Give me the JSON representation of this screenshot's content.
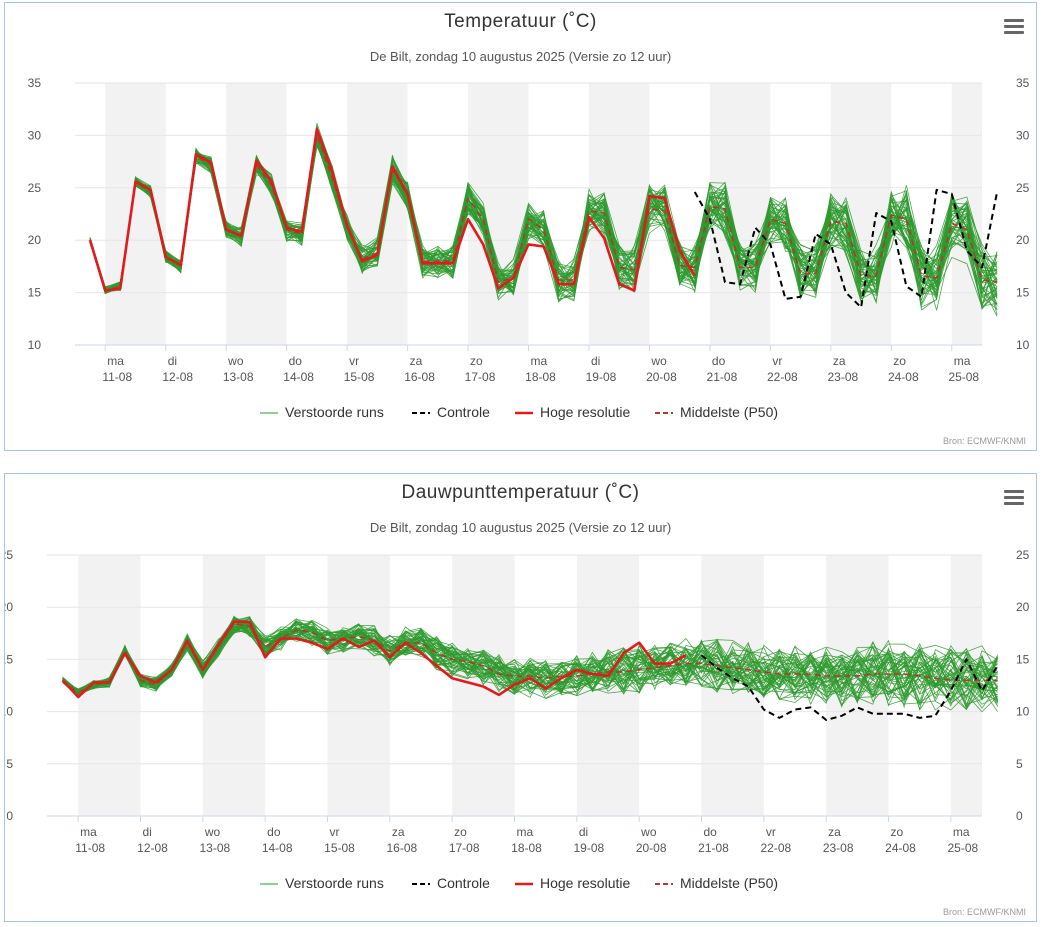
{
  "credit": "Bron: ECMWF/KNMI",
  "legend": [
    {
      "label": "Verstoorde runs",
      "color": "#2e9a2e",
      "style": "solid"
    },
    {
      "label": "Controle",
      "color": "#000000",
      "style": "dashed"
    },
    {
      "label": "Hoge resolutie",
      "color": "#e31a1c",
      "style": "solid"
    },
    {
      "label": "Middelste (P50)",
      "color": "#b03a2e",
      "style": "dashed"
    }
  ],
  "colors": {
    "ensemble": "#2e9a2e",
    "control": "#000000",
    "hires": "#e31a1c",
    "median": "#b03a2e",
    "band": "#f2f2f2",
    "grid": "#e6e6e6"
  },
  "chart_data": [
    {
      "type": "line",
      "title": "Temperatuur (˚C)",
      "subtitle": "De Bilt, zondag 10 augustus 2025 (Versie zo 12 uur)",
      "ylim": [
        10,
        35
      ],
      "yticks": [
        10,
        15,
        20,
        25,
        30,
        35
      ],
      "x_range": [
        "2025-08-10 12:00",
        "2025-08-25 12:00"
      ],
      "x_step_hours": 6,
      "x_start": "2025-08-10 18:00",
      "days": [
        {
          "day": "ma",
          "date": "11-08"
        },
        {
          "day": "di",
          "date": "12-08"
        },
        {
          "day": "wo",
          "date": "13-08"
        },
        {
          "day": "do",
          "date": "14-08"
        },
        {
          "day": "vr",
          "date": "15-08"
        },
        {
          "day": "za",
          "date": "16-08"
        },
        {
          "day": "zo",
          "date": "17-08"
        },
        {
          "day": "ma",
          "date": "18-08"
        },
        {
          "day": "di",
          "date": "19-08"
        },
        {
          "day": "wo",
          "date": "20-08"
        },
        {
          "day": "do",
          "date": "21-08"
        },
        {
          "day": "vr",
          "date": "22-08"
        },
        {
          "day": "za",
          "date": "23-08"
        },
        {
          "day": "zo",
          "date": "24-08"
        },
        {
          "day": "ma",
          "date": "25-08"
        }
      ],
      "series": [
        {
          "name": "Middelste (P50)",
          "style": "median",
          "values": [
            20,
            15.2,
            15.6,
            25.6,
            24.6,
            18.4,
            17.6,
            28,
            27.2,
            21,
            20.4,
            27.2,
            25.2,
            21,
            20.6,
            30,
            26,
            21.2,
            18.2,
            18.8,
            26.8,
            24.2,
            18,
            18,
            18,
            24,
            22,
            16,
            16.4,
            22,
            21,
            16.2,
            16.2,
            22.8,
            22.6,
            17.4,
            17.2,
            23,
            22.8,
            17.6,
            17.4,
            23.2,
            23,
            17.4,
            17.4,
            22,
            21.6,
            16.8,
            16.8,
            21.8,
            21.6,
            16.6,
            16.6,
            22.4,
            22,
            16.6,
            16.4,
            21.6,
            21,
            16.2,
            16
          ]
        },
        {
          "name": "Controle",
          "style": "control",
          "values": [
            null,
            null,
            null,
            null,
            null,
            null,
            null,
            null,
            null,
            null,
            null,
            null,
            null,
            null,
            null,
            null,
            null,
            null,
            null,
            null,
            null,
            null,
            null,
            null,
            null,
            null,
            null,
            null,
            null,
            null,
            null,
            null,
            null,
            null,
            null,
            null,
            null,
            null,
            null,
            null,
            24.6,
            22,
            16,
            15.8,
            21.2,
            19.6,
            14.4,
            14.6,
            20.6,
            19.6,
            15,
            13.6,
            22.6,
            21.8,
            15.6,
            14.6,
            24.8,
            24.4,
            19,
            17.4,
            24.6
          ]
        },
        {
          "name": "Hoge resolutie",
          "style": "hires",
          "values": [
            20,
            15.2,
            15.4,
            25.6,
            24.8,
            18.4,
            17.6,
            28.2,
            27.4,
            21,
            20.4,
            27.6,
            25.6,
            21.2,
            20.8,
            30.6,
            26.6,
            21.4,
            18,
            18.6,
            27,
            24.4,
            17.8,
            17.8,
            17.8,
            22,
            19.6,
            15.4,
            16.4,
            19.6,
            19.4,
            15.8,
            15.8,
            22.2,
            20.2,
            15.8,
            15.2,
            24.2,
            24,
            19,
            16.6
          ]
        }
      ]
    },
    {
      "type": "line",
      "title": "Dauwpunttemperatuur (˚C)",
      "subtitle": "De Bilt, zondag 10 augustus 2025 (Versie zo 12 uur)",
      "ylim": [
        0,
        25
      ],
      "yticks": [
        0,
        5,
        10,
        15,
        20,
        25
      ],
      "x_range": [
        "2025-08-10 12:00",
        "2025-08-25 12:00"
      ],
      "x_step_hours": 6,
      "x_start": "2025-08-10 18:00",
      "days": [
        {
          "day": "ma",
          "date": "11-08"
        },
        {
          "day": "di",
          "date": "12-08"
        },
        {
          "day": "wo",
          "date": "13-08"
        },
        {
          "day": "do",
          "date": "14-08"
        },
        {
          "day": "vr",
          "date": "15-08"
        },
        {
          "day": "za",
          "date": "16-08"
        },
        {
          "day": "zo",
          "date": "17-08"
        },
        {
          "day": "ma",
          "date": "18-08"
        },
        {
          "day": "di",
          "date": "19-08"
        },
        {
          "day": "wo",
          "date": "20-08"
        },
        {
          "day": "do",
          "date": "21-08"
        },
        {
          "day": "vr",
          "date": "22-08"
        },
        {
          "day": "za",
          "date": "23-08"
        },
        {
          "day": "zo",
          "date": "24-08"
        },
        {
          "day": "ma",
          "date": "25-08"
        }
      ],
      "series": [
        {
          "name": "Middelste (P50)",
          "style": "median",
          "values": [
            13,
            11.8,
            12.6,
            12.8,
            15.8,
            13,
            12.6,
            14,
            16.6,
            14,
            16.2,
            18.4,
            18.2,
            16.2,
            17,
            17.8,
            17.6,
            16.8,
            17,
            17.2,
            16.8,
            15.8,
            16.6,
            16.6,
            15.6,
            15,
            14.8,
            14.4,
            13.6,
            13.4,
            13.4,
            13.2,
            13.4,
            13.4,
            13.6,
            13.8,
            13.8,
            14,
            14.2,
            14.4,
            14.6,
            14.6,
            14.4,
            14.2,
            14,
            13.8,
            13.6,
            13.6,
            13.6,
            13.4,
            13.4,
            13.4,
            13.6,
            13.6,
            13.6,
            13.4,
            13.2,
            13,
            13,
            13,
            13
          ]
        },
        {
          "name": "Controle",
          "style": "control",
          "values": [
            null,
            null,
            null,
            null,
            null,
            null,
            null,
            null,
            null,
            null,
            null,
            null,
            null,
            null,
            null,
            null,
            null,
            null,
            null,
            null,
            null,
            null,
            null,
            null,
            null,
            null,
            null,
            null,
            null,
            null,
            null,
            null,
            null,
            null,
            null,
            null,
            null,
            null,
            null,
            null,
            null,
            15.4,
            14.2,
            13.2,
            12.4,
            10.2,
            9.4,
            10.2,
            10.4,
            9.2,
            9.6,
            10.4,
            9.8,
            9.8,
            9.8,
            9.4,
            9.6,
            12,
            15,
            12,
            14.4
          ]
        },
        {
          "name": "Hoge resolutie",
          "style": "hires",
          "values": [
            13,
            11.4,
            12.8,
            12.8,
            15.6,
            13.4,
            12.8,
            14,
            16.8,
            14,
            16.4,
            18.6,
            18.6,
            15.2,
            17,
            17,
            16.6,
            16,
            17,
            16.2,
            16.8,
            15.2,
            16.6,
            15.6,
            14.4,
            13.2,
            12.8,
            12.4,
            11.6,
            12.6,
            13.2,
            12.2,
            13.2,
            14,
            13.6,
            13.4,
            15.6,
            16.6,
            14.6,
            14.6,
            15.4
          ]
        }
      ]
    }
  ]
}
